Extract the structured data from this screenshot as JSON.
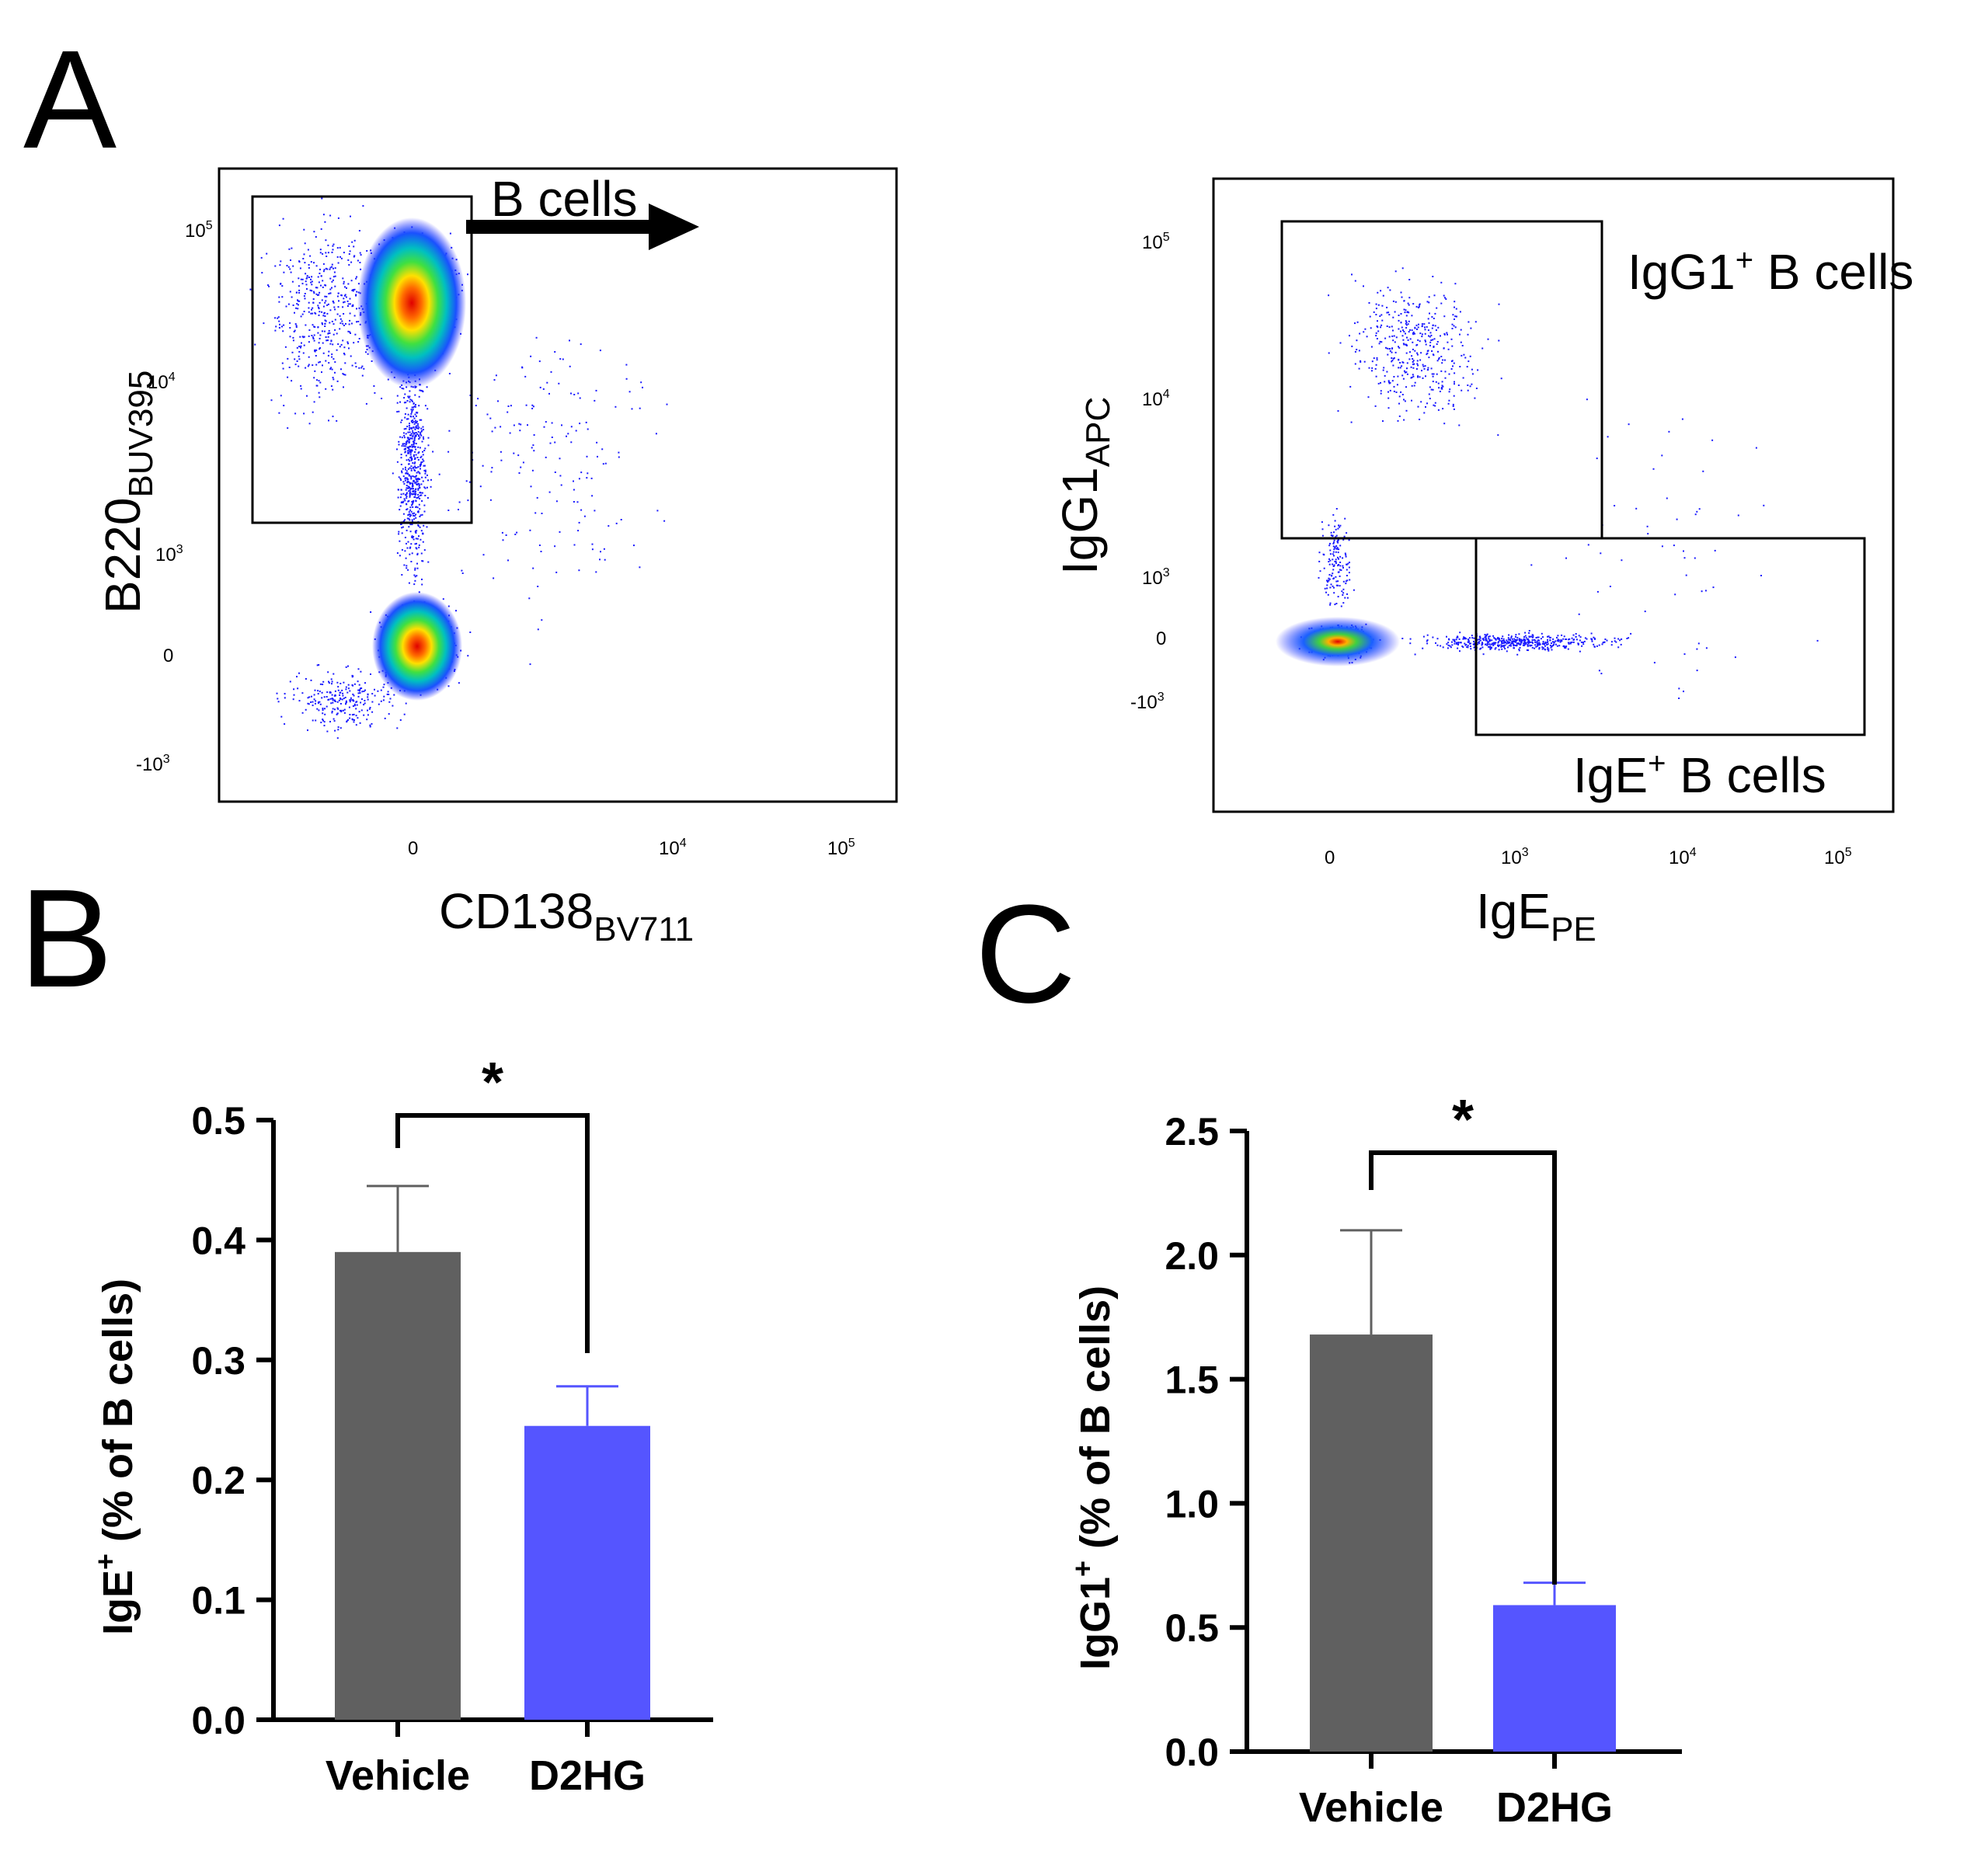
{
  "panels": {
    "a": "A",
    "b": "B",
    "c": "C"
  },
  "colors": {
    "vehicle": "#606060",
    "d2hg": "#5555ff",
    "dots": "#1a1aff"
  },
  "chart_data": [
    {
      "type": "scatter",
      "panel": "A",
      "subtitle": "flow cytometry pseudocolor plot",
      "xlabel": "CD138",
      "xlabel_sub": "BV711",
      "ylabel": "B220",
      "ylabel_sub": "BUV395",
      "x_ticks": [
        {
          "label": "0",
          "value": 0
        },
        {
          "label": "10",
          "sup": "4",
          "value": 10000
        },
        {
          "label": "10",
          "sup": "5",
          "value": 100000
        }
      ],
      "y_ticks": [
        {
          "label": "-10",
          "sup": "3",
          "value": -1000
        },
        {
          "label": "0",
          "value": 0
        },
        {
          "label": "10",
          "sup": "3",
          "value": 1000
        },
        {
          "label": "10",
          "sup": "4",
          "value": 10000
        },
        {
          "label": "10",
          "sup": "5",
          "value": 100000
        }
      ],
      "gates": [
        {
          "label": "B cells",
          "arrow": true
        }
      ],
      "populations": [
        {
          "x": 0,
          "y": 30000,
          "note": "B220-high population"
        },
        {
          "x": 0,
          "y": 0,
          "note": "B220-negative population"
        }
      ]
    },
    {
      "type": "scatter",
      "panel": "A",
      "subtitle": "flow cytometry pseudocolor plot",
      "xlabel": "IgE",
      "xlabel_sub": "PE",
      "ylabel": "IgG1",
      "ylabel_sub": "APC",
      "x_ticks": [
        {
          "label": "0",
          "value": 0
        },
        {
          "label": "10",
          "sup": "3",
          "value": 1000
        },
        {
          "label": "10",
          "sup": "4",
          "value": 10000
        },
        {
          "label": "10",
          "sup": "5",
          "value": 100000
        }
      ],
      "y_ticks": [
        {
          "label": "-10",
          "sup": "3",
          "value": -1000
        },
        {
          "label": "0",
          "value": 0
        },
        {
          "label": "10",
          "sup": "3",
          "value": 1000
        },
        {
          "label": "10",
          "sup": "4",
          "value": 10000
        },
        {
          "label": "10",
          "sup": "5",
          "value": 100000
        }
      ],
      "gates": [
        {
          "label": "IgG1",
          "sup": "+",
          "label_rest": " B cells"
        },
        {
          "label": "IgE",
          "sup": "+",
          "label_rest": " B cells"
        }
      ]
    },
    {
      "type": "bar",
      "panel": "B",
      "categories": [
        "Vehicle",
        "D2HG"
      ],
      "values": [
        0.39,
        0.245
      ],
      "errors": [
        0.055,
        0.033
      ],
      "ylabel": "IgE",
      "ylabel_sup": "+",
      "ylabel_rest": " (% of B cells)",
      "ylim": [
        0,
        0.5
      ],
      "yticks": [
        "0.0",
        "0.1",
        "0.2",
        "0.3",
        "0.4",
        "0.5"
      ],
      "significance": "*"
    },
    {
      "type": "bar",
      "panel": "C",
      "categories": [
        "Vehicle",
        "D2HG"
      ],
      "values": [
        1.68,
        0.59
      ],
      "errors": [
        0.42,
        0.09
      ],
      "ylabel": "IgG1",
      "ylabel_sup": "+",
      "ylabel_rest": " (% of B cells)",
      "ylim": [
        0,
        2.5
      ],
      "yticks": [
        "0.0",
        "0.5",
        "1.0",
        "1.5",
        "2.0",
        "2.5"
      ],
      "significance": "*"
    }
  ]
}
